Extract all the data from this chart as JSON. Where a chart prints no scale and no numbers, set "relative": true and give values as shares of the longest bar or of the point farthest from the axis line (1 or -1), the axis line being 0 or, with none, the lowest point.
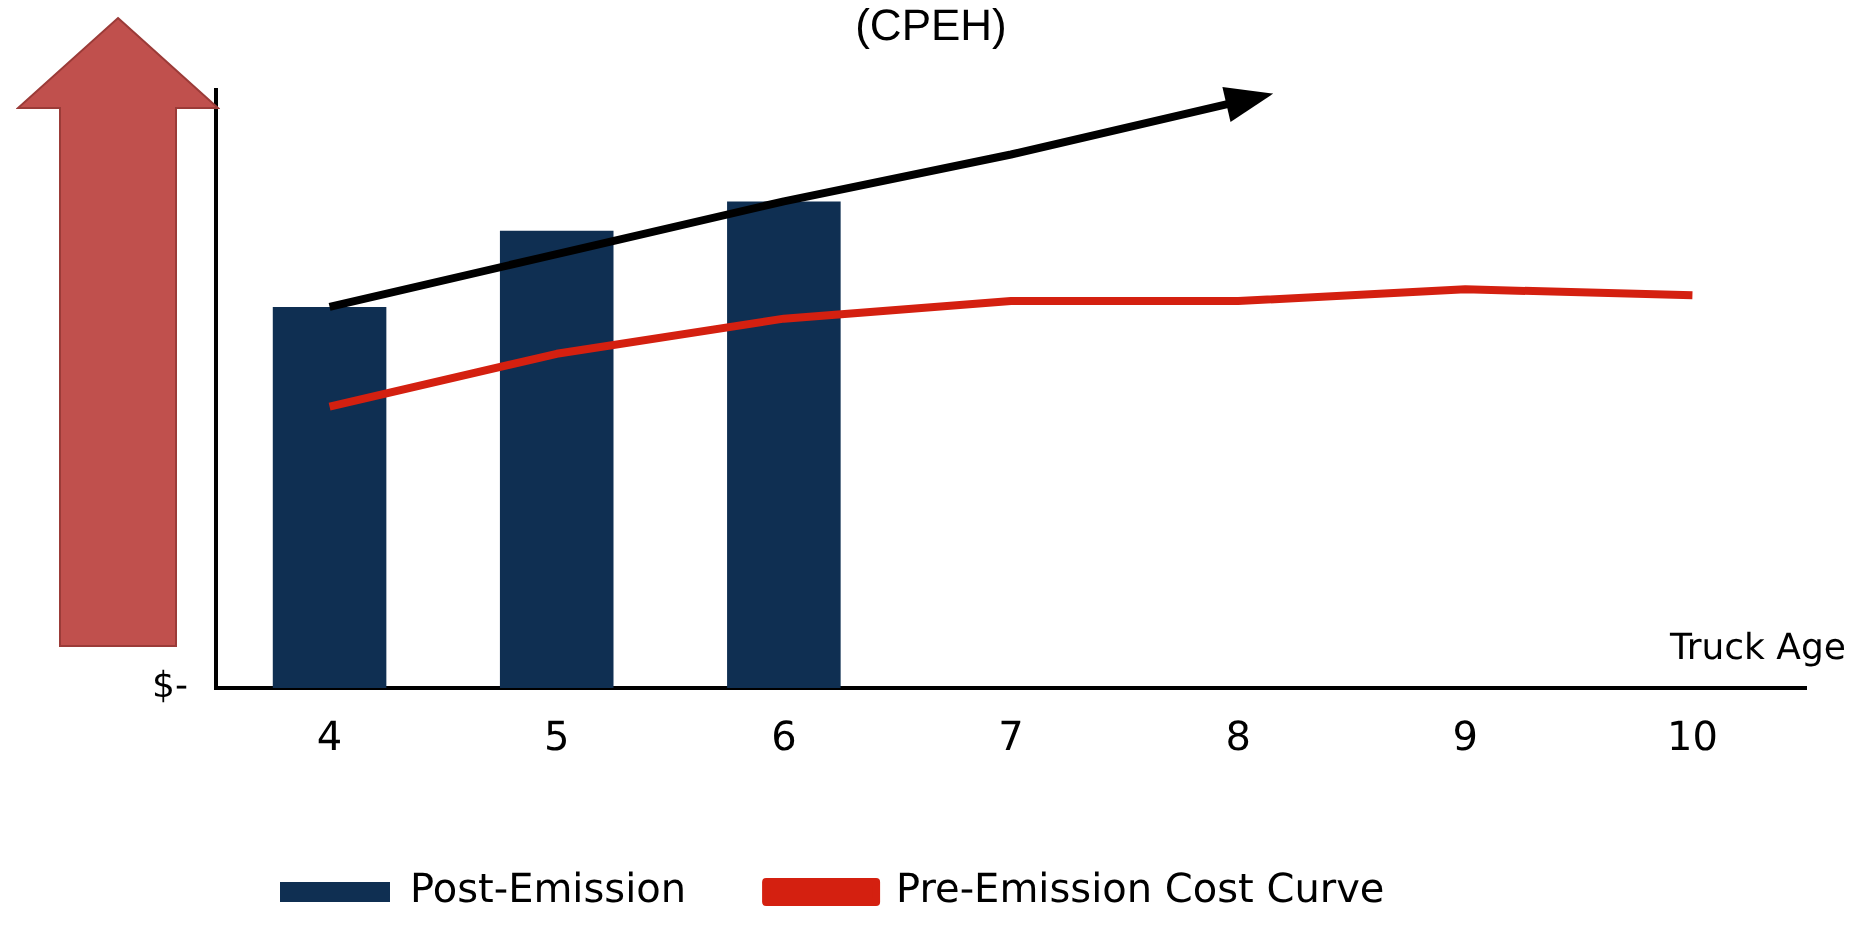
{
  "chart_data": {
    "type": "bar",
    "title": "(CPEH)",
    "xlabel": "Truck Age",
    "relative": true,
    "categories": [
      "4",
      "5",
      "6",
      "7",
      "8",
      "9",
      "10"
    ],
    "series": [
      {
        "name": "Post-Emission",
        "color": "#0f2f52",
        "values": [
          0.65,
          0.78,
          0.83,
          null,
          null,
          null,
          null
        ]
      },
      {
        "name": "Pre-Emission Cost Curve",
        "type": "line",
        "color": "#d42010",
        "values": [
          0.48,
          0.57,
          0.63,
          0.66,
          0.66,
          0.68,
          0.67
        ]
      },
      {
        "type": "line",
        "color": "#000000",
        "values": [
          0.65,
          0.74,
          0.83,
          0.91,
          1,
          null,
          null
        ]
      }
    ],
    "annotations": [
      "$-"
    ],
    "legend": "bottom",
    "grid": false,
    "marker": "none"
  }
}
